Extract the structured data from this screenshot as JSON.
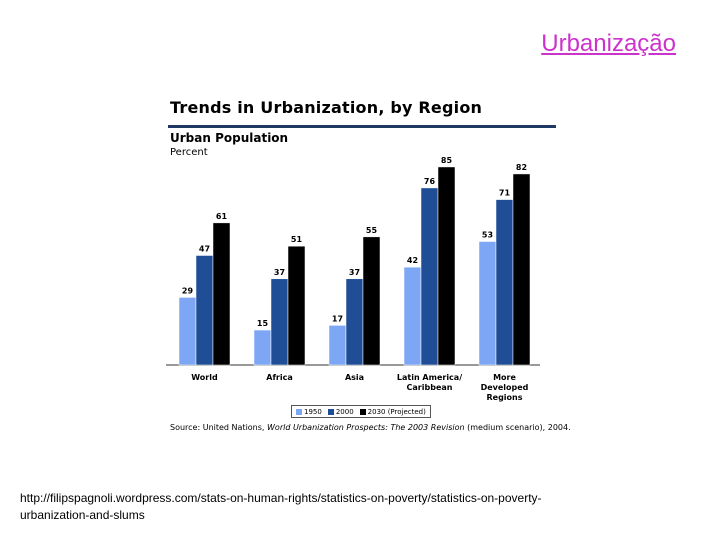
{
  "slide": {
    "title": "Urbanização",
    "url_line1": "http://filipspagnoli.wordpress.com/stats-on-human-rights/statistics-on-poverty/statistics-on-poverty-",
    "url_line2": "urbanization-and-slums"
  },
  "chart_data": {
    "type": "bar",
    "title": "Trends in Urbanization, by Region",
    "subtitle": "Urban Population",
    "unit_label": "Percent",
    "categories": [
      "World",
      "Africa",
      "Asia",
      "Latin America/ Caribbean",
      "More Developed Regions"
    ],
    "category_lines": [
      [
        "World"
      ],
      [
        "Africa"
      ],
      [
        "Asia"
      ],
      [
        "Latin America/",
        "Caribbean"
      ],
      [
        "More",
        "Developed",
        "Regions"
      ]
    ],
    "series": [
      {
        "name": "1950",
        "color": "#7da7f5",
        "values": [
          29,
          15,
          17,
          42,
          53
        ]
      },
      {
        "name": "2000",
        "color": "#1f4e96",
        "values": [
          47,
          37,
          37,
          76,
          71
        ]
      },
      {
        "name": "2030 (Projected)",
        "color": "#000000",
        "values": [
          61,
          51,
          55,
          85,
          82
        ]
      }
    ],
    "ylim": [
      0,
      100
    ],
    "grid": false,
    "legend_position": "bottom",
    "source_prefix": "Source: United Nations, ",
    "source_italic": "World Urbanization Prospects: The 2003 Revision",
    "source_suffix": " (medium scenario), 2004."
  }
}
